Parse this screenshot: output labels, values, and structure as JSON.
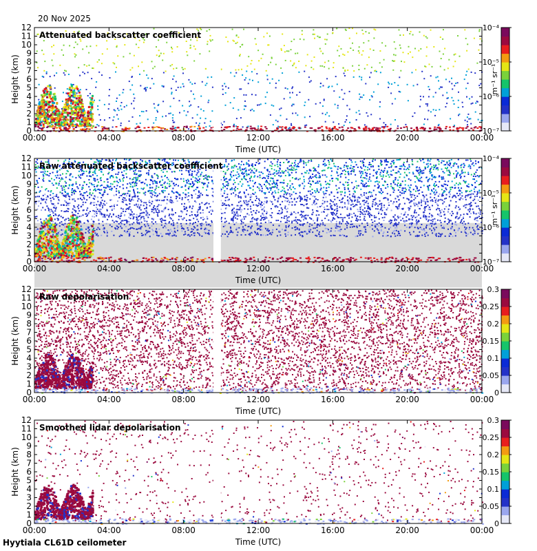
{
  "header": {
    "date": "20 Nov 2025"
  },
  "footer": {
    "station": "Hyytiala CL61D ceilometer"
  },
  "colors": {
    "background": "#ffffff",
    "no_data_gap": "#ffffff",
    "low_signal_grey": "#d9d9d9",
    "colormap": [
      "#e6e8f7",
      "#9aa6ee",
      "#2432c8",
      "#0b2bd6",
      "#00a0d8",
      "#16c46a",
      "#7ad23a",
      "#e5e615",
      "#f39b12",
      "#e81e1e",
      "#9b0a3f",
      "#7a0a5c"
    ]
  },
  "chart_data": [
    {
      "type": "heatmap",
      "title": "Attenuated backscatter coefficient",
      "xlabel": "Time (UTC)",
      "ylabel": "Height (km)",
      "x_ticks": [
        "00:00",
        "04:00",
        "08:00",
        "12:00",
        "16:00",
        "20:00",
        "00:00"
      ],
      "y_ticks": [
        "0",
        "1",
        "2",
        "3",
        "4",
        "5",
        "6",
        "7",
        "8",
        "9",
        "10",
        "11",
        "12"
      ],
      "ylim": [
        0,
        12
      ],
      "xlim_hours": [
        0,
        24
      ],
      "data_gap_hours": [
        9.6,
        10.0
      ],
      "colorbar": {
        "label": "m⁻¹ sr⁻¹",
        "scale": "log",
        "ticks": [
          "10⁻⁷",
          "10⁻⁶",
          "10⁻⁵",
          "10⁻⁴"
        ],
        "range": [
          1e-07,
          0.0001
        ]
      },
      "features": {
        "low_cloud_0_3h_top_km": 5.5,
        "boundary_layer_km": 0.5,
        "sparse_noise": true
      }
    },
    {
      "type": "heatmap",
      "title": "Raw attenuated backscatter coefficient",
      "xlabel": "Time (UTC)",
      "ylabel": "Height (km)",
      "x_ticks": [
        "00:00",
        "04:00",
        "08:00",
        "12:00",
        "16:00",
        "20:00",
        "00:00"
      ],
      "y_ticks": [
        "0",
        "1",
        "2",
        "3",
        "4",
        "5",
        "6",
        "7",
        "8",
        "9",
        "10",
        "11",
        "12"
      ],
      "ylim": [
        0,
        12
      ],
      "xlim_hours": [
        0,
        24
      ],
      "data_gap_hours": [
        9.6,
        10.0
      ],
      "colorbar": {
        "label": "m⁻¹ sr⁻¹",
        "scale": "log",
        "ticks": [
          "10⁻⁷",
          "10⁻⁶",
          "10⁻⁵",
          "10⁻⁴"
        ],
        "range": [
          1e-07,
          0.0001
        ]
      },
      "features": {
        "low_cloud_0_3h_top_km": 5.5,
        "boundary_layer_km": 0.5,
        "dense_noise": true
      }
    },
    {
      "type": "heatmap",
      "title": "Raw depolarisation",
      "xlabel": "Time (UTC)",
      "ylabel": "Height (km)",
      "x_ticks": [
        "00:00",
        "04:00",
        "08:00",
        "12:00",
        "16:00",
        "20:00",
        "00:00"
      ],
      "y_ticks": [
        "0",
        "1",
        "2",
        "3",
        "4",
        "5",
        "6",
        "7",
        "8",
        "9",
        "10",
        "11",
        "12"
      ],
      "ylim": [
        0,
        12
      ],
      "xlim_hours": [
        0,
        24
      ],
      "data_gap_hours": [
        9.6,
        10.0
      ],
      "colorbar": {
        "label": "",
        "scale": "linear",
        "ticks": [
          "0",
          "0.05",
          "0.1",
          "0.15",
          "0.2",
          "0.25",
          "0.3"
        ],
        "range": [
          0,
          0.3
        ]
      },
      "features": {
        "dense_noise": true,
        "noise_value": 0.3
      }
    },
    {
      "type": "heatmap",
      "title": "Smoothed lidar depolarisation",
      "xlabel": "Time (UTC)",
      "ylabel": "Height (km)",
      "x_ticks": [
        "00:00",
        "04:00",
        "08:00",
        "12:00",
        "16:00",
        "20:00",
        "00:00"
      ],
      "y_ticks": [
        "0",
        "1",
        "2",
        "3",
        "4",
        "5",
        "6",
        "7",
        "8",
        "9",
        "10",
        "11",
        "12"
      ],
      "ylim": [
        0,
        12
      ],
      "xlim_hours": [
        0,
        24
      ],
      "data_gap_hours": [
        9.6,
        10.0
      ],
      "colorbar": {
        "label": "",
        "scale": "linear",
        "ticks": [
          "0",
          "0.05",
          "0.1",
          "0.15",
          "0.2",
          "0.25",
          "0.3"
        ],
        "range": [
          0,
          0.3
        ]
      },
      "features": {
        "sparse_noise": true,
        "noise_value": 0.3
      }
    }
  ]
}
